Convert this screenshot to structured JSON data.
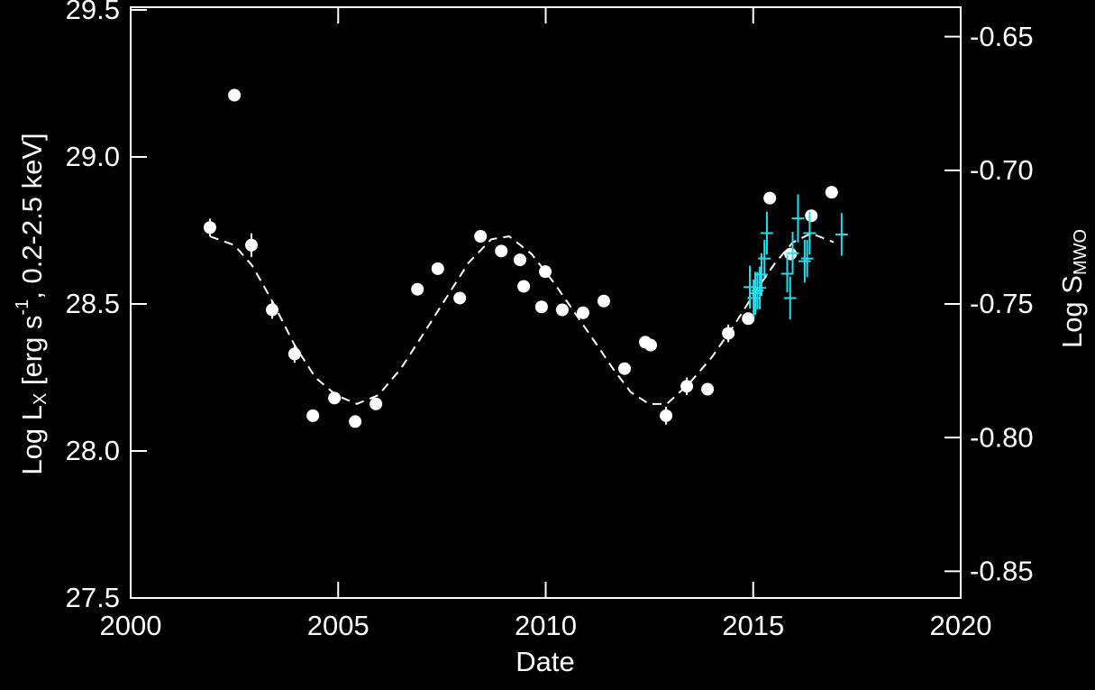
{
  "chart_data": {
    "type": "scatter",
    "x_label": "Date",
    "y_label": {
      "main": "Log L",
      "sub": "X",
      "mid": " [erg s",
      "sup": "-1",
      "end": ",  0.2-2.5 keV]"
    },
    "y2_label": {
      "main": "Log S",
      "sub": "MWO"
    },
    "xlim": [
      2000,
      2020
    ],
    "xticks": [
      2000,
      2005,
      2010,
      2015,
      2020
    ],
    "ylim": [
      27.5,
      29.5
    ],
    "yticks": [
      27.5,
      {
        "value": 28,
        "label": "28.0"
      },
      28.5,
      {
        "value": 29,
        "label": "29.0"
      },
      29.5
    ],
    "y2lim": [
      -0.86,
      -0.64
    ],
    "y2ticks": [
      -0.85,
      {
        "value": -0.8,
        "label": "-0.80"
      },
      -0.75,
      {
        "value": -0.7,
        "label": "-0.70"
      },
      -0.65
    ],
    "background": "#000000",
    "foreground": "#ffffff",
    "series": [
      {
        "type": "points",
        "color": "#ffffff",
        "x": [
          2001.91,
          2002.5,
          2002.91,
          2003.41,
          2003.95,
          2004.39,
          2004.91,
          2005.41,
          2005.91,
          2006.91,
          2007.4,
          2007.93,
          2008.43,
          2008.93,
          2009.38,
          2009.47,
          2009.9,
          2009.99,
          2010.4,
          2010.9,
          2011.4,
          2011.9,
          2012.4,
          2012.53,
          2012.9,
          2013.4,
          2013.9,
          2014.4,
          2014.88,
          2015.4,
          2015.9,
          2016.4,
          2016.89
        ],
        "values": [
          28.76,
          29.21,
          28.7,
          28.48,
          28.33,
          28.12,
          28.18,
          28.1,
          28.16,
          28.55,
          28.62,
          28.52,
          28.73,
          28.68,
          28.65,
          28.56,
          28.49,
          28.61,
          28.48,
          28.47,
          28.51,
          28.28,
          28.37,
          28.36,
          28.12,
          28.22,
          28.21,
          28.4,
          28.45,
          28.86,
          28.67,
          28.8,
          28.88
        ],
        "errors": [
          0.03,
          0.02,
          0.04,
          0.03,
          0.03,
          0.02,
          0.02,
          0.02,
          0.02,
          0.02,
          0.02,
          0.02,
          0.02,
          0.02,
          0.02,
          0.02,
          0.02,
          0.02,
          0.02,
          0.02,
          0.02,
          0.02,
          0.02,
          0.02,
          0.03,
          0.03,
          0.02,
          0.03,
          0.02,
          0.02,
          0.02,
          0.02,
          0.02
        ]
      },
      {
        "type": "crosses",
        "axis": "y2",
        "color": "#22e0f0",
        "x": [
          2014.92,
          2015.01,
          2015.05,
          2015.1,
          2015.16,
          2015.2,
          2015.27,
          2015.33,
          2015.82,
          2015.89,
          2015.95,
          2016.08,
          2016.24,
          2016.3,
          2016.36,
          2017.13
        ],
        "values": [
          -0.7437,
          -0.7478,
          -0.746,
          -0.745,
          -0.744,
          -0.739,
          -0.733,
          -0.7235,
          -0.7387,
          -0.7478,
          -0.731,
          -0.718,
          -0.734,
          -0.733,
          -0.7235,
          -0.724
        ],
        "errors": [
          0.008,
          0.007,
          0.008,
          0.007,
          0.008,
          0.008,
          0.007,
          0.008,
          0.007,
          0.008,
          0.008,
          0.009,
          0.008,
          0.007,
          0.008,
          0.008
        ],
        "xerrors": [
          0.15,
          0.15,
          0.15,
          0.15,
          0.15,
          0.15,
          0.15,
          0.15,
          0.15,
          0.15,
          0.15,
          0.15,
          0.15,
          0.15,
          0.15,
          0.15
        ]
      },
      {
        "type": "line",
        "dash": true,
        "color": "#ffffff",
        "x": [
          2001.91,
          2002.5,
          2002.93,
          2003.41,
          2003.95,
          2004.45,
          2004.95,
          2005.45,
          2005.97,
          2006.51,
          2007.06,
          2007.6,
          2008.14,
          2008.69,
          2009.12,
          2009.66,
          2010.21,
          2010.75,
          2011.19,
          2011.62,
          2012.05,
          2012.49,
          2012.92,
          2013.46,
          2014.01,
          2014.55,
          2015.09,
          2015.53,
          2015.96,
          2016.4,
          2016.94
        ],
        "values": [
          28.73,
          28.7,
          28.63,
          28.51,
          28.36,
          28.25,
          28.19,
          28.16,
          28.19,
          28.28,
          28.4,
          28.52,
          28.64,
          28.72,
          28.73,
          28.67,
          28.57,
          28.46,
          28.37,
          28.28,
          28.2,
          28.16,
          28.16,
          28.23,
          28.32,
          28.43,
          28.55,
          28.64,
          28.71,
          28.74,
          28.71
        ]
      }
    ]
  }
}
